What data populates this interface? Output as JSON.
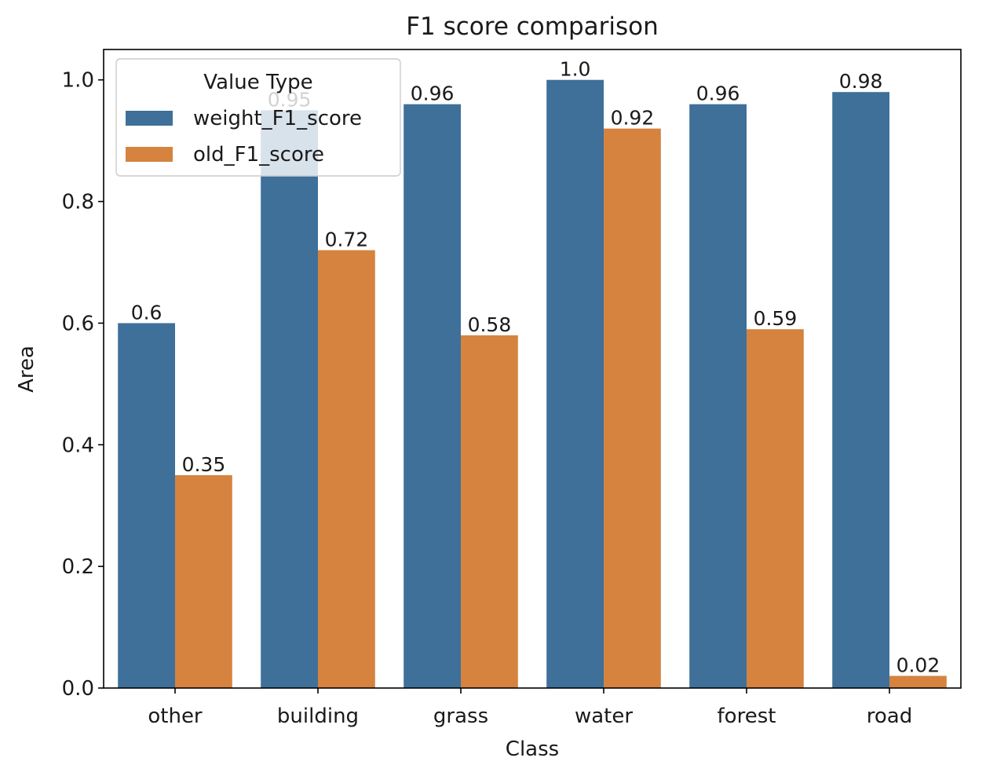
{
  "chart_data": {
    "type": "bar",
    "title": "F1 score comparison",
    "xlabel": "Class",
    "ylabel": "Area",
    "categories": [
      "other",
      "building",
      "grass",
      "water",
      "forest",
      "road"
    ],
    "series": [
      {
        "name": "weight_F1_score",
        "values": [
          0.6,
          0.95,
          0.96,
          1.0,
          0.96,
          0.98
        ],
        "labels": [
          "0.6",
          "0.95",
          "0.96",
          "1.0",
          "0.96",
          "0.98"
        ],
        "color": "#3e7099"
      },
      {
        "name": "old_F1_score",
        "values": [
          0.35,
          0.72,
          0.58,
          0.92,
          0.59,
          0.02
        ],
        "labels": [
          "0.35",
          "0.72",
          "0.58",
          "0.92",
          "0.59",
          "0.02"
        ],
        "color": "#d5833f"
      }
    ],
    "ylim": [
      0,
      1.05
    ],
    "yticks": [
      "0.0",
      "0.2",
      "0.4",
      "0.6",
      "0.8",
      "1.0"
    ],
    "legend": {
      "title": "Value Type",
      "placement": "top-left"
    },
    "grid": false
  }
}
